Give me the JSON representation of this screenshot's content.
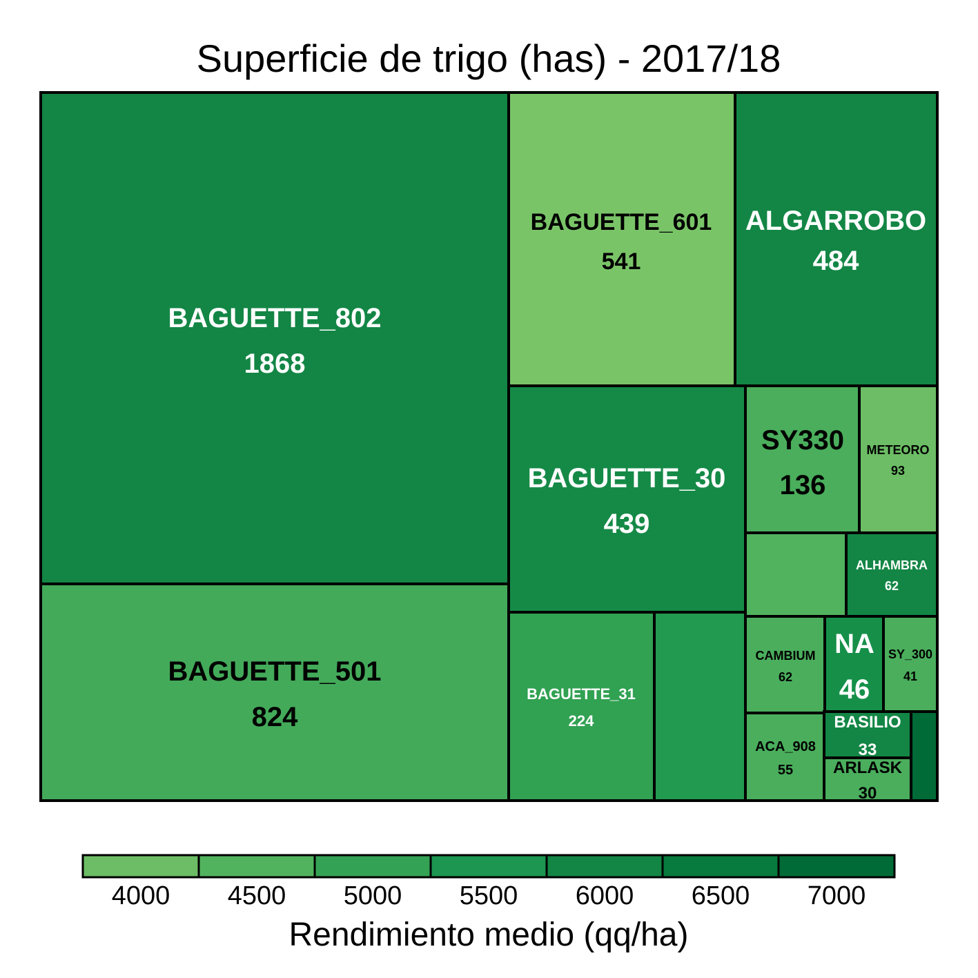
{
  "chart_data": {
    "type": "treemap",
    "title": "Superficie de trigo (has) - 2017/18",
    "size_variable": "Superficie (has)",
    "color_variable": "Rendimiento medio (qq/ha)",
    "items": [
      {
        "name": "BAGUETTE_802",
        "area": 1868,
        "area_label": "1868",
        "color": "#138645",
        "label_color": "#ffffff"
      },
      {
        "name": "BAGUETTE_501",
        "area": 824,
        "area_label": "824",
        "color": "#43aa5a",
        "label_color": "#000000"
      },
      {
        "name": "BAGUETTE_601",
        "area": 541,
        "area_label": "541",
        "color": "#7ac468",
        "label_color": "#000000"
      },
      {
        "name": "ALGARROBO",
        "area": 484,
        "area_label": "484",
        "color": "#138645",
        "label_color": "#ffffff"
      },
      {
        "name": "BAGUETTE_30",
        "area": 439,
        "area_label": "439",
        "color": "#158a47",
        "label_color": "#ffffff"
      },
      {
        "name": "BAGUETTE_31",
        "area": 224,
        "area_label": "224",
        "color": "#31a152",
        "label_color": "#ffffff"
      },
      {
        "name": "",
        "area": 148,
        "area_label": "",
        "color": "#229a4f",
        "label_color": "#ffffff"
      },
      {
        "name": "SY330",
        "area": 136,
        "area_label": "136",
        "color": "#4aae5c",
        "label_color": "#000000"
      },
      {
        "name": "METEORO",
        "area": 93,
        "area_label": "93",
        "color": "#6cbd65",
        "label_color": "#000000"
      },
      {
        "name": "",
        "area": 80,
        "area_label": "",
        "color": "#52b35f",
        "label_color": "#000000"
      },
      {
        "name": "ALHAMBRA",
        "area": 62,
        "area_label": "62",
        "color": "#138645",
        "label_color": "#ffffff"
      },
      {
        "name": "CAMBIUM",
        "area": 62,
        "area_label": "62",
        "color": "#4aae5c",
        "label_color": "#000000"
      },
      {
        "name": "NA",
        "area": 46,
        "area_label": "46",
        "color": "#169049",
        "label_color": "#ffffff"
      },
      {
        "name": "SY_300",
        "area": 41,
        "area_label": "41",
        "color": "#4aae5c",
        "label_color": "#000000"
      },
      {
        "name": "ACA_908",
        "area": 55,
        "area_label": "55",
        "color": "#4aae5c",
        "label_color": "#000000"
      },
      {
        "name": "BASILIO",
        "area": 33,
        "area_label": "33",
        "color": "#138645",
        "label_color": "#ffffff"
      },
      {
        "name": "ARLASK",
        "area": 30,
        "area_label": "30",
        "color": "#4aae5c",
        "label_color": "#000000"
      },
      {
        "name": "",
        "area": 12,
        "area_label": "",
        "color": "#006b36",
        "label_color": "#ffffff"
      }
    ],
    "legend": {
      "title": "Rendimiento medio (qq/ha)",
      "placement": "bottom",
      "ticks": [
        "4000",
        "4500",
        "5000",
        "5500",
        "6000",
        "6500",
        "7000"
      ],
      "colors": [
        "#6cbd65",
        "#52b35f",
        "#34a254",
        "#1c9650",
        "#138645",
        "#077a3d",
        "#006b36"
      ]
    }
  }
}
